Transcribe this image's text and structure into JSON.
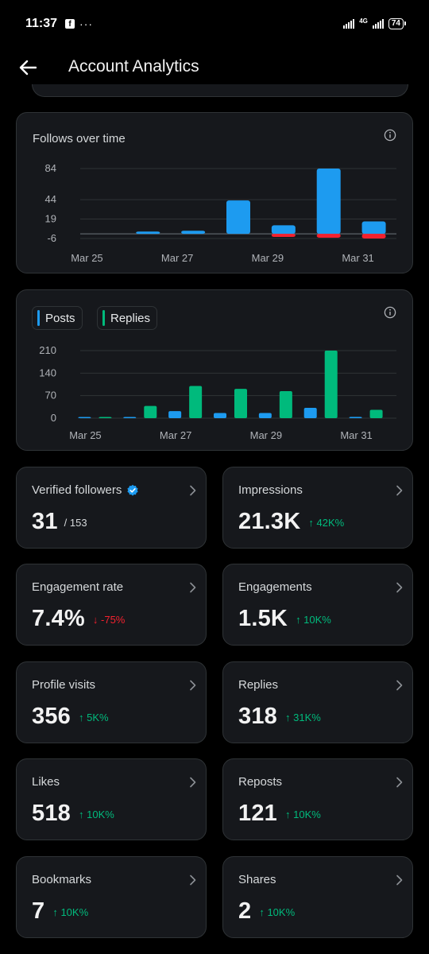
{
  "status_bar": {
    "time": "11:37",
    "facebook_icon": "f",
    "more": "···",
    "network": "4G",
    "battery": "74"
  },
  "header": {
    "title": "Account Analytics",
    "back_icon": "arrow-left-icon"
  },
  "follows_chart": {
    "title": "Follows over time",
    "info_icon": "info-icon",
    "chart_data": {
      "type": "bar",
      "title": "Follows over time",
      "categories": [
        "Mar 25",
        "Mar 26",
        "Mar 27",
        "Mar 28",
        "Mar 29",
        "Mar 30",
        "Mar 31"
      ],
      "x_tick_labels": [
        "Mar 25",
        "Mar 27",
        "Mar 29",
        "Mar 31"
      ],
      "y_ticks": [
        "84",
        "44",
        "19",
        "-6"
      ],
      "ylim": [
        -6,
        84
      ],
      "series": [
        {
          "values": [
            0,
            3,
            4,
            43,
            11,
            84,
            16
          ],
          "color": "#1d9bf0"
        },
        {
          "values": [
            0,
            0,
            0,
            0,
            -4,
            -5,
            -6
          ],
          "color": "#f4212e"
        }
      ]
    }
  },
  "posts_replies_chart": {
    "info_icon": "info-icon",
    "legend": [
      {
        "label": "Posts",
        "color": "#1d9bf0"
      },
      {
        "label": "Replies",
        "color": "#00ba7c"
      }
    ],
    "chart_data": {
      "type": "bar",
      "categories": [
        "Mar 25",
        "Mar 26",
        "Mar 27",
        "Mar 28",
        "Mar 29",
        "Mar 30",
        "Mar 31"
      ],
      "x_tick_labels": [
        "Mar 25",
        "Mar 27",
        "Mar 29",
        "Mar 31"
      ],
      "y_ticks": [
        "210",
        "140",
        "70",
        "0"
      ],
      "ylim": [
        0,
        210
      ],
      "series": [
        {
          "name": "Posts",
          "values": [
            0,
            2,
            22,
            16,
            16,
            32,
            4
          ],
          "color": "#1d9bf0"
        },
        {
          "name": "Replies",
          "values": [
            2,
            38,
            100,
            91,
            84,
            210,
            26
          ],
          "color": "#00ba7c"
        }
      ]
    }
  },
  "stats": [
    {
      "label": "Verified followers",
      "value": "31",
      "sub": "/ 153",
      "verified": true
    },
    {
      "label": "Impressions",
      "value": "21.3K",
      "change": "↑ 42K%",
      "dir": "up"
    },
    {
      "label": "Engagement rate",
      "value": "7.4%",
      "change": "↓ -75%",
      "dir": "down"
    },
    {
      "label": "Engagements",
      "value": "1.5K",
      "change": "↑ 10K%",
      "dir": "up"
    },
    {
      "label": "Profile visits",
      "value": "356",
      "change": "↑ 5K%",
      "dir": "up"
    },
    {
      "label": "Replies",
      "value": "318",
      "change": "↑ 31K%",
      "dir": "up"
    },
    {
      "label": "Likes",
      "value": "518",
      "change": "↑ 10K%",
      "dir": "up"
    },
    {
      "label": "Reposts",
      "value": "121",
      "change": "↑ 10K%",
      "dir": "up"
    },
    {
      "label": "Bookmarks",
      "value": "7",
      "change": "↑ 10K%",
      "dir": "up"
    },
    {
      "label": "Shares",
      "value": "2",
      "change": "↑ 10K%",
      "dir": "up"
    }
  ]
}
